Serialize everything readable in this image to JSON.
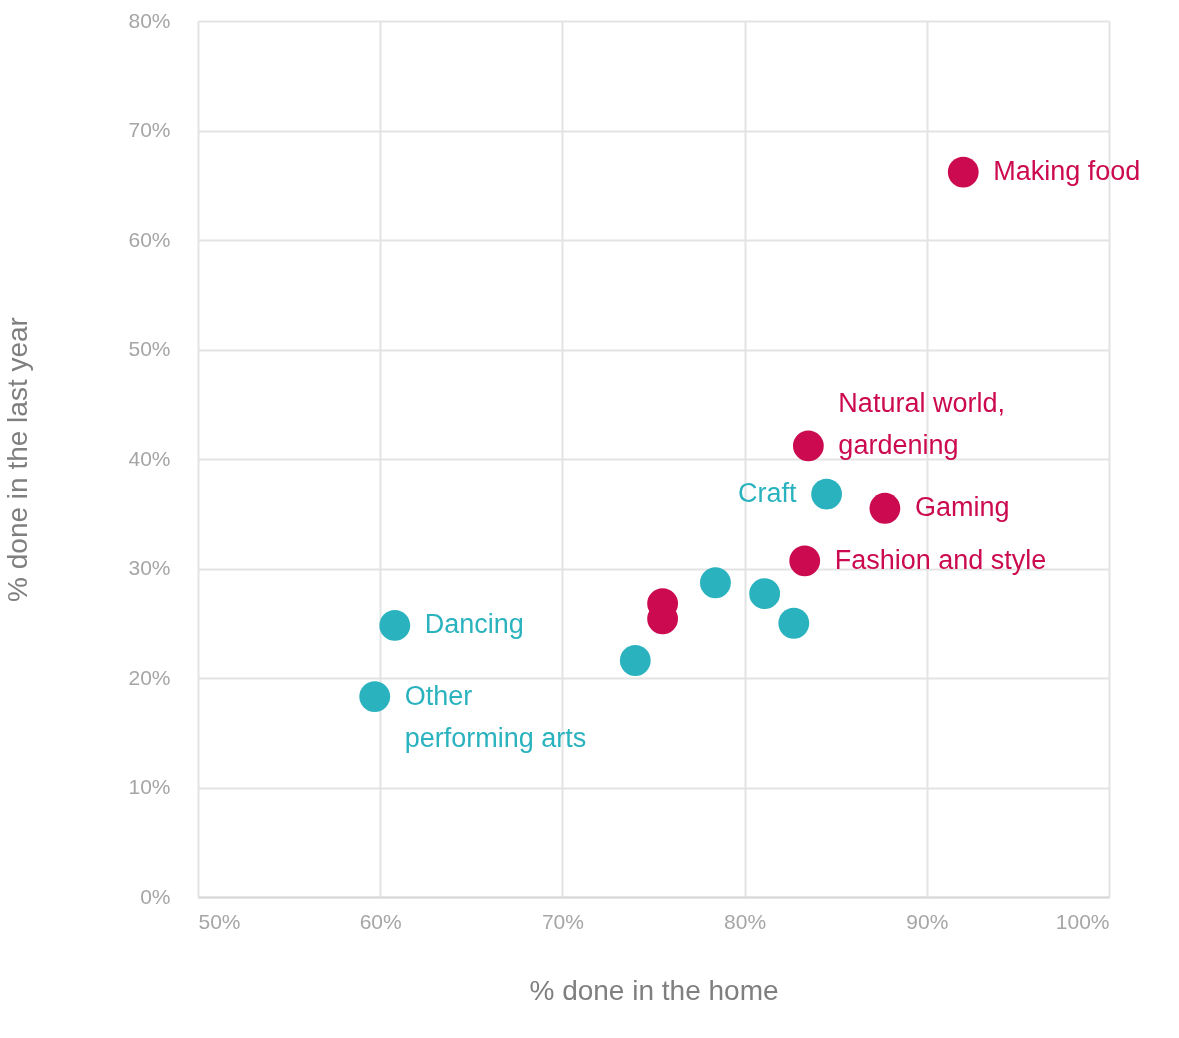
{
  "chart_data": {
    "type": "scatter",
    "xlabel": "% done in the home",
    "ylabel": "% done in the last year",
    "xlim": [
      50,
      100
    ],
    "ylim": [
      0,
      80
    ],
    "xticks": [
      {
        "value": 50,
        "label": "50%"
      },
      {
        "value": 60,
        "label": "60%"
      },
      {
        "value": 70,
        "label": "70%"
      },
      {
        "value": 80,
        "label": "80%"
      },
      {
        "value": 90,
        "label": "90%"
      },
      {
        "value": 100,
        "label": "100%"
      }
    ],
    "yticks": [
      {
        "value": 0,
        "label": "0%"
      },
      {
        "value": 10,
        "label": "10%"
      },
      {
        "value": 20,
        "label": "20%"
      },
      {
        "value": 30,
        "label": "30%"
      },
      {
        "value": 40,
        "label": "40%"
      },
      {
        "value": 50,
        "label": "50%"
      },
      {
        "value": 60,
        "label": "60%"
      },
      {
        "value": 70,
        "label": "70%"
      },
      {
        "value": 80,
        "label": "80%"
      }
    ],
    "grid": true,
    "marker": "circle",
    "series": [
      {
        "color": "#cc0a4f",
        "x": [
          92.0,
          83.5,
          87.7,
          83.3,
          75.5,
          75.5
        ],
        "values": [
          66.2,
          41.2,
          35.5,
          30.7,
          26.8,
          25.4
        ],
        "value_labels": [
          "Making food",
          "Natural world,\ngardening",
          "Gaming",
          "Fashion and style",
          null,
          null
        ]
      },
      {
        "color": "#2ab3bf",
        "x": [
          84.5,
          78.4,
          81.1,
          82.7,
          74.0,
          60.8,
          59.7
        ],
        "values": [
          36.8,
          28.7,
          27.7,
          25.0,
          21.6,
          24.8,
          18.3
        ],
        "value_labels": [
          "Craft",
          null,
          null,
          null,
          null,
          "Dancing",
          "Other\nperforming arts"
        ]
      }
    ]
  }
}
